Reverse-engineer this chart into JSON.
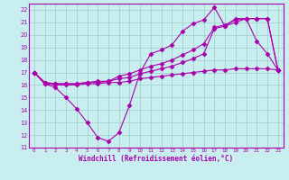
{
  "xlabel": "Windchill (Refroidissement éolien,°C)",
  "bg_color": "#c8eef0",
  "grid_color": "#a0cccc",
  "line_color": "#aa00aa",
  "xlim": [
    -0.5,
    23.5
  ],
  "ylim": [
    11,
    22.5
  ],
  "yticks": [
    11,
    12,
    13,
    14,
    15,
    16,
    17,
    18,
    19,
    20,
    21,
    22
  ],
  "xticks": [
    0,
    1,
    2,
    3,
    4,
    5,
    6,
    7,
    8,
    9,
    10,
    11,
    12,
    13,
    14,
    15,
    16,
    17,
    18,
    19,
    20,
    21,
    22,
    23
  ],
  "series1_x": [
    0,
    1,
    2,
    3,
    4,
    5,
    6,
    7,
    8,
    9,
    10,
    11,
    12,
    13,
    14,
    15,
    16,
    17,
    18,
    19,
    20,
    21,
    22,
    23
  ],
  "series1_y": [
    17.0,
    16.1,
    15.8,
    15.0,
    14.1,
    13.0,
    11.8,
    11.5,
    12.2,
    14.4,
    17.0,
    18.5,
    18.8,
    19.2,
    20.3,
    20.9,
    21.2,
    22.2,
    20.7,
    21.3,
    21.3,
    19.5,
    18.5,
    17.2
  ],
  "series2_x": [
    0,
    1,
    2,
    3,
    4,
    5,
    6,
    7,
    8,
    9,
    10,
    11,
    12,
    13,
    14,
    15,
    16,
    17,
    18,
    19,
    20,
    21,
    22,
    23
  ],
  "series2_y": [
    17.0,
    16.1,
    16.0,
    16.0,
    16.0,
    16.1,
    16.1,
    16.2,
    16.2,
    16.3,
    16.5,
    16.6,
    16.7,
    16.8,
    16.9,
    17.0,
    17.1,
    17.2,
    17.2,
    17.3,
    17.3,
    17.3,
    17.3,
    17.2
  ],
  "series3_x": [
    0,
    1,
    2,
    3,
    4,
    5,
    6,
    7,
    8,
    9,
    10,
    11,
    12,
    13,
    14,
    15,
    16,
    17,
    18,
    19,
    20,
    21,
    22,
    23
  ],
  "series3_y": [
    17.0,
    16.2,
    16.1,
    16.1,
    16.1,
    16.2,
    16.2,
    16.3,
    16.5,
    16.6,
    16.9,
    17.1,
    17.3,
    17.5,
    17.8,
    18.1,
    18.5,
    20.5,
    20.7,
    21.0,
    21.3,
    21.3,
    21.3,
    17.2
  ],
  "series4_x": [
    0,
    1,
    2,
    3,
    4,
    5,
    6,
    7,
    8,
    9,
    10,
    11,
    12,
    13,
    14,
    15,
    16,
    17,
    18,
    19,
    20,
    21,
    22,
    23
  ],
  "series4_y": [
    17.0,
    16.2,
    16.1,
    16.1,
    16.1,
    16.2,
    16.3,
    16.3,
    16.7,
    16.9,
    17.2,
    17.5,
    17.7,
    18.0,
    18.4,
    18.8,
    19.3,
    20.6,
    20.8,
    21.2,
    21.3,
    21.3,
    21.3,
    17.2
  ]
}
